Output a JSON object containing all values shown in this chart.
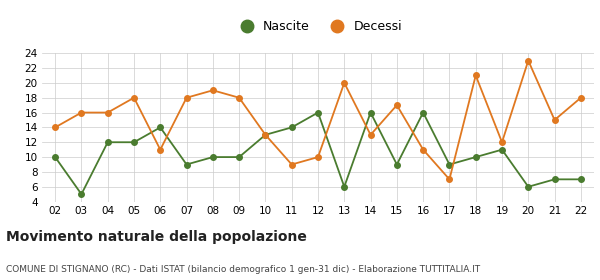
{
  "years": [
    2,
    3,
    4,
    5,
    6,
    7,
    8,
    9,
    10,
    11,
    12,
    13,
    14,
    15,
    16,
    17,
    18,
    19,
    20,
    21,
    22
  ],
  "nascite": [
    10,
    5,
    12,
    12,
    14,
    9,
    10,
    10,
    13,
    14,
    16,
    6,
    16,
    9,
    16,
    9,
    10,
    11,
    6,
    7,
    7
  ],
  "decessi": [
    14,
    16,
    16,
    18,
    11,
    18,
    19,
    18,
    13,
    9,
    10,
    20,
    13,
    17,
    11,
    7,
    21,
    12,
    23,
    15,
    18
  ],
  "nascite_color": "#4a7c2f",
  "decessi_color": "#e07820",
  "nascite_label": "Nascite",
  "decessi_label": "Decessi",
  "ylim": [
    4,
    24
  ],
  "yticks": [
    4,
    6,
    8,
    10,
    12,
    14,
    16,
    18,
    20,
    22,
    24
  ],
  "title": "Movimento naturale della popolazione",
  "subtitle": "COMUNE DI STIGNANO (RC) - Dati ISTAT (bilancio demografico 1 gen-31 dic) - Elaborazione TUTTITALIA.IT",
  "bg_color": "#ffffff",
  "plot_bg_color": "#ffffff",
  "grid_color": "#cccccc",
  "marker_size": 4,
  "line_width": 1.3,
  "title_fontsize": 10,
  "subtitle_fontsize": 6.5,
  "tick_fontsize": 7.5,
  "legend_fontsize": 9
}
